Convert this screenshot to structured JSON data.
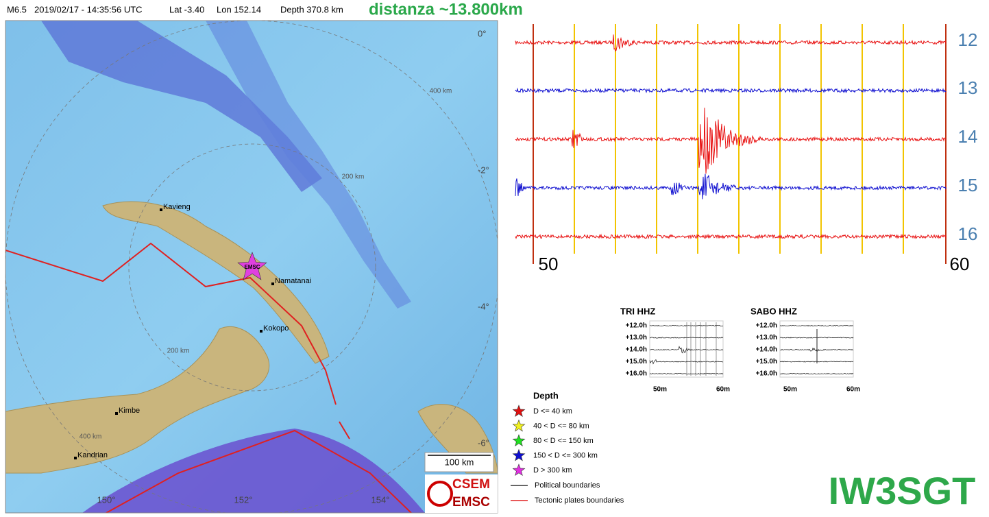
{
  "header": {
    "magnitude": "M6.5",
    "datetime": "2019/02/17 - 14:35:56 UTC",
    "lat": "Lat -3.40",
    "lon": "Lon 152.14",
    "depth": "Depth 370.8 km",
    "distance": "distanza ~13.800km"
  },
  "map": {
    "lat_labels": [
      "0°",
      "-2°",
      "-4°",
      "-6°"
    ],
    "lon_labels": [
      "150°",
      "152°",
      "154°"
    ],
    "ring_labels": [
      "400 km",
      "200 km",
      "200 km",
      "400 km"
    ],
    "places": [
      "Kavieng",
      "Namatanai",
      "Kokopo",
      "Kimbe",
      "Kandrian"
    ],
    "epicenter_label": "EMSC",
    "scale": "100 km",
    "logo": [
      "CSEM",
      "EMSC"
    ]
  },
  "seismogram": {
    "hours": [
      "12",
      "13",
      "14",
      "15",
      "16"
    ],
    "minutes": [
      "50",
      "60"
    ]
  },
  "mini_plots": [
    {
      "title": "TRI HHZ",
      "hours": [
        "+12.0h",
        "+13.0h",
        "+14.0h",
        "+15.0h",
        "+16.0h"
      ],
      "minutes": [
        "50m",
        "60m"
      ]
    },
    {
      "title": "SABO HHZ",
      "hours": [
        "+12.0h",
        "+13.0h",
        "+14.0h",
        "+15.0h",
        "+16.0h"
      ],
      "minutes": [
        "50m",
        "60m"
      ]
    }
  ],
  "legend": {
    "title": "Depth",
    "items": [
      "D <= 40 km",
      "40 < D <= 80 km",
      "80 < D <= 150 km",
      "150 < D <= 300 km",
      "D > 300 km"
    ],
    "lines": [
      "Political boundaries",
      "Tectonic plates boundaries"
    ]
  },
  "signature": "IW3SGT"
}
